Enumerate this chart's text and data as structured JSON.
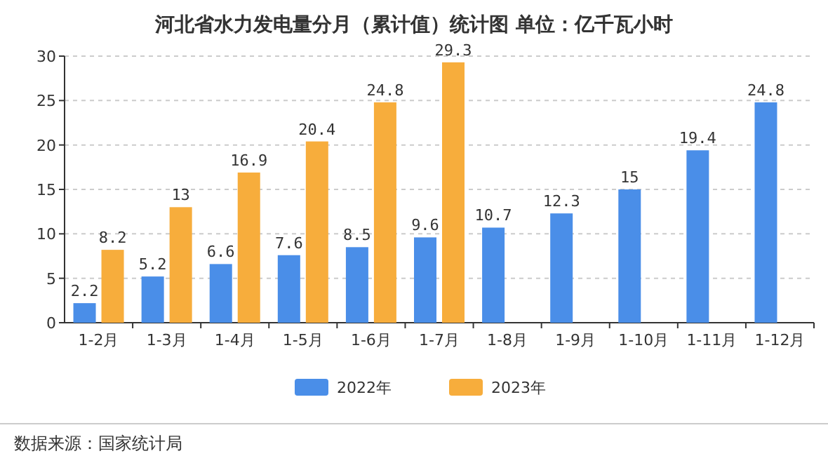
{
  "chart_data": {
    "type": "bar",
    "title": "河北省水力发电量分月（累计值）统计图 单位：亿千瓦小时",
    "categories": [
      "1-2月",
      "1-3月",
      "1-4月",
      "1-5月",
      "1-6月",
      "1-7月",
      "1-8月",
      "1-9月",
      "1-10月",
      "1-11月",
      "1-12月"
    ],
    "series": [
      {
        "name": "2022年",
        "color": "#4a8ee8",
        "values": [
          2.2,
          5.2,
          6.6,
          7.6,
          8.5,
          9.6,
          10.7,
          12.3,
          15,
          19.4,
          24.8
        ]
      },
      {
        "name": "2023年",
        "color": "#f7ad3c",
        "values": [
          8.2,
          13,
          16.9,
          20.4,
          24.8,
          29.3,
          null,
          null,
          null,
          null,
          null
        ]
      }
    ],
    "ylim": [
      0,
      30
    ],
    "yticks": [
      0,
      5,
      10,
      15,
      20,
      25,
      30
    ],
    "grid": "y",
    "legend": "bottom",
    "data_labels": true,
    "annotations": [
      "数据来源：国家统计局"
    ]
  }
}
